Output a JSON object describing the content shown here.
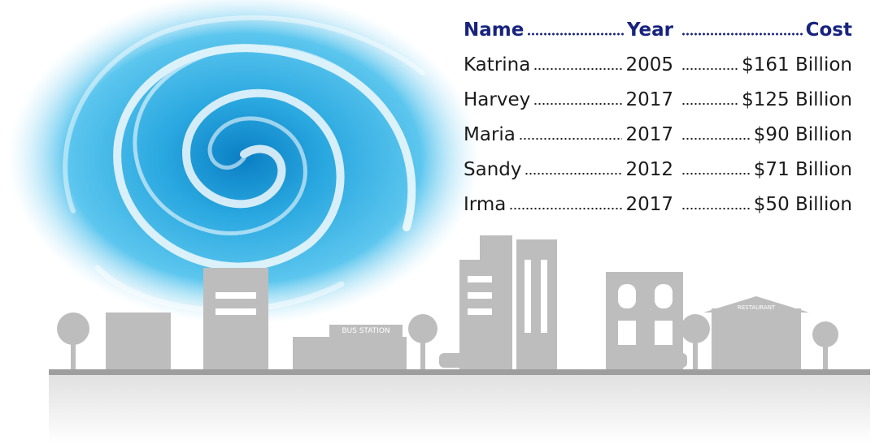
{
  "table": {
    "header": [
      "Name",
      "Year",
      "Cost"
    ],
    "rows": [
      [
        "Katrina",
        "2005",
        "$161 Billion"
      ],
      [
        "Harvey",
        "2017",
        "$125 Billion"
      ],
      [
        "Maria",
        "2017",
        "$90 Billion"
      ],
      [
        "Sandy",
        "2012",
        "$71 Billion"
      ],
      [
        "Irma",
        "2017",
        "$50 Billion"
      ]
    ]
  },
  "sign": "BUS STATION",
  "sign2": "RESTAURANT"
}
